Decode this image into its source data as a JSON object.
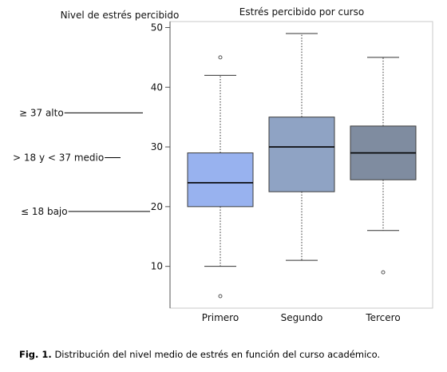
{
  "caption": {
    "label": "Fig. 1.",
    "text": "Distribución del nivel medio de estrés en función del curso académico."
  },
  "colors": {
    "primero": "#98b2ef",
    "segundo": "#8fa3c4",
    "tercero": "#7f8ca0",
    "frame": "#c9c9c9",
    "median": "#000000",
    "whisker": "#555555"
  },
  "chart_data": {
    "type": "box",
    "title": "Estrés percibido por curso",
    "ylabel": "Nivel de estrés percibido",
    "xlabel": "",
    "ylim": [
      3,
      51
    ],
    "yticks": [
      10,
      20,
      30,
      40,
      50
    ],
    "grid": false,
    "categories": [
      "Primero",
      "Segundo",
      "Tercero"
    ],
    "boxes": [
      {
        "category": "Primero",
        "min": 10,
        "q1": 20,
        "median": 24,
        "q3": 29,
        "max": 42,
        "outliers": [
          45,
          5
        ]
      },
      {
        "category": "Segundo",
        "min": 11,
        "q1": 22.5,
        "median": 30,
        "q3": 35,
        "max": 49,
        "outliers": []
      },
      {
        "category": "Tercero",
        "min": 16,
        "q1": 24.5,
        "median": 29,
        "q3": 33.5,
        "max": 45,
        "outliers": [
          9
        ]
      }
    ],
    "annotations": [
      {
        "text": "≥ 37 alto",
        "y": 35.7
      },
      {
        "text": "> 18 y < 37 medio",
        "y": 28.2
      },
      {
        "text": "≤ 18 bajo",
        "y": 19.2
      }
    ]
  }
}
